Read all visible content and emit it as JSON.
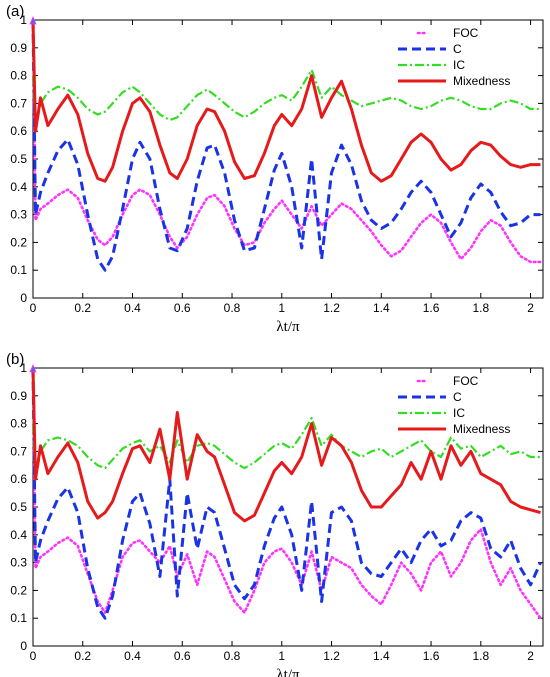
{
  "chart_data": [
    {
      "type": "line",
      "panel_label": "(a)",
      "xlabel": "λt/π",
      "ylabel": "",
      "xlim": [
        0,
        2.05
      ],
      "ylim": [
        0,
        1
      ],
      "xticks": [
        "0",
        "0.2",
        "0.4",
        "0.6",
        "0.8",
        "1",
        "1.2",
        "1.4",
        "1.6",
        "1.8",
        "2"
      ],
      "yticks": [
        "0",
        "0.1",
        "0.2",
        "0.3",
        "0.4",
        "0.5",
        "0.6",
        "0.7",
        "0.8",
        "0.9",
        "1"
      ],
      "grid": false,
      "legend": "top-right",
      "series": [
        {
          "name": "FOC",
          "style": "dotted",
          "color": "#ff33ff",
          "x": [
            0,
            0.01,
            0.03,
            0.06,
            0.1,
            0.14,
            0.18,
            0.22,
            0.26,
            0.29,
            0.32,
            0.36,
            0.4,
            0.43,
            0.47,
            0.51,
            0.55,
            0.58,
            0.62,
            0.66,
            0.7,
            0.73,
            0.77,
            0.81,
            0.85,
            0.89,
            0.93,
            0.97,
            1.0,
            1.04,
            1.08,
            1.12,
            1.16,
            1.2,
            1.24,
            1.28,
            1.32,
            1.36,
            1.4,
            1.44,
            1.48,
            1.52,
            1.56,
            1.6,
            1.64,
            1.68,
            1.72,
            1.76,
            1.8,
            1.84,
            1.88,
            1.92,
            1.96,
            2.0,
            2.04
          ],
          "y": [
            1.0,
            0.28,
            0.32,
            0.34,
            0.37,
            0.39,
            0.36,
            0.28,
            0.21,
            0.19,
            0.22,
            0.3,
            0.37,
            0.39,
            0.37,
            0.3,
            0.22,
            0.18,
            0.22,
            0.3,
            0.36,
            0.37,
            0.33,
            0.25,
            0.19,
            0.2,
            0.27,
            0.32,
            0.35,
            0.3,
            0.25,
            0.33,
            0.26,
            0.3,
            0.34,
            0.32,
            0.28,
            0.24,
            0.19,
            0.15,
            0.17,
            0.22,
            0.27,
            0.3,
            0.27,
            0.2,
            0.14,
            0.18,
            0.24,
            0.28,
            0.26,
            0.2,
            0.15,
            0.13,
            0.13
          ]
        },
        {
          "name": "C",
          "style": "dashed",
          "color": "#1a33e6",
          "x": [
            0,
            0.01,
            0.03,
            0.06,
            0.1,
            0.14,
            0.18,
            0.22,
            0.26,
            0.29,
            0.32,
            0.36,
            0.4,
            0.43,
            0.47,
            0.51,
            0.55,
            0.58,
            0.62,
            0.66,
            0.7,
            0.73,
            0.77,
            0.81,
            0.85,
            0.89,
            0.93,
            0.97,
            1.0,
            1.04,
            1.08,
            1.12,
            1.16,
            1.2,
            1.24,
            1.28,
            1.32,
            1.36,
            1.4,
            1.44,
            1.48,
            1.52,
            1.56,
            1.6,
            1.64,
            1.68,
            1.72,
            1.76,
            1.8,
            1.84,
            1.88,
            1.92,
            1.96,
            2.0,
            2.04
          ],
          "y": [
            1.0,
            0.3,
            0.38,
            0.45,
            0.53,
            0.57,
            0.48,
            0.3,
            0.14,
            0.1,
            0.15,
            0.32,
            0.5,
            0.56,
            0.5,
            0.32,
            0.18,
            0.17,
            0.25,
            0.42,
            0.54,
            0.55,
            0.45,
            0.28,
            0.17,
            0.18,
            0.32,
            0.46,
            0.52,
            0.4,
            0.18,
            0.5,
            0.14,
            0.45,
            0.55,
            0.48,
            0.35,
            0.28,
            0.25,
            0.27,
            0.32,
            0.38,
            0.42,
            0.38,
            0.3,
            0.22,
            0.27,
            0.36,
            0.41,
            0.38,
            0.31,
            0.26,
            0.27,
            0.3,
            0.3
          ]
        },
        {
          "name": "IC",
          "style": "dashdot",
          "color": "#33dd22",
          "x": [
            0,
            0.01,
            0.03,
            0.06,
            0.1,
            0.14,
            0.18,
            0.22,
            0.26,
            0.29,
            0.32,
            0.36,
            0.4,
            0.43,
            0.47,
            0.51,
            0.55,
            0.58,
            0.62,
            0.66,
            0.7,
            0.73,
            0.77,
            0.81,
            0.85,
            0.89,
            0.93,
            0.97,
            1.0,
            1.04,
            1.08,
            1.12,
            1.16,
            1.2,
            1.24,
            1.28,
            1.32,
            1.36,
            1.4,
            1.44,
            1.48,
            1.52,
            1.56,
            1.6,
            1.64,
            1.68,
            1.72,
            1.76,
            1.8,
            1.84,
            1.88,
            1.92,
            1.96,
            2.0,
            2.04
          ],
          "y": [
            0.8,
            0.6,
            0.7,
            0.74,
            0.76,
            0.75,
            0.72,
            0.68,
            0.66,
            0.67,
            0.7,
            0.74,
            0.76,
            0.74,
            0.7,
            0.66,
            0.64,
            0.65,
            0.69,
            0.73,
            0.75,
            0.73,
            0.7,
            0.67,
            0.65,
            0.67,
            0.7,
            0.72,
            0.73,
            0.71,
            0.76,
            0.82,
            0.72,
            0.76,
            0.73,
            0.71,
            0.69,
            0.7,
            0.71,
            0.72,
            0.71,
            0.69,
            0.68,
            0.69,
            0.71,
            0.72,
            0.71,
            0.69,
            0.68,
            0.68,
            0.7,
            0.71,
            0.7,
            0.68,
            0.68
          ]
        },
        {
          "name": "Mixedness",
          "style": "solid",
          "color": "#e61a1a",
          "x": [
            0,
            0.01,
            0.03,
            0.06,
            0.1,
            0.14,
            0.18,
            0.22,
            0.26,
            0.29,
            0.32,
            0.36,
            0.4,
            0.43,
            0.47,
            0.51,
            0.55,
            0.58,
            0.62,
            0.66,
            0.7,
            0.73,
            0.77,
            0.81,
            0.85,
            0.89,
            0.93,
            0.97,
            1.0,
            1.04,
            1.08,
            1.12,
            1.16,
            1.2,
            1.24,
            1.28,
            1.32,
            1.36,
            1.4,
            1.44,
            1.48,
            1.52,
            1.56,
            1.6,
            1.64,
            1.68,
            1.72,
            1.76,
            1.8,
            1.84,
            1.88,
            1.92,
            1.96,
            2.0,
            2.04
          ],
          "y": [
            1.0,
            0.6,
            0.72,
            0.62,
            0.68,
            0.73,
            0.66,
            0.52,
            0.43,
            0.42,
            0.47,
            0.6,
            0.7,
            0.72,
            0.67,
            0.55,
            0.45,
            0.43,
            0.5,
            0.62,
            0.68,
            0.67,
            0.6,
            0.49,
            0.43,
            0.44,
            0.52,
            0.62,
            0.66,
            0.62,
            0.68,
            0.8,
            0.65,
            0.72,
            0.78,
            0.68,
            0.55,
            0.45,
            0.42,
            0.44,
            0.5,
            0.56,
            0.59,
            0.56,
            0.5,
            0.46,
            0.48,
            0.53,
            0.56,
            0.55,
            0.51,
            0.48,
            0.47,
            0.48,
            0.48
          ]
        }
      ]
    },
    {
      "type": "line",
      "panel_label": "(b)",
      "xlabel": "λt/π",
      "ylabel": "",
      "xlim": [
        0,
        2.05
      ],
      "ylim": [
        0,
        1
      ],
      "xticks": [
        "0",
        "0.2",
        "0.4",
        "0.6",
        "0.8",
        "1",
        "1.2",
        "1.4",
        "1.6",
        "1.8",
        "2"
      ],
      "yticks": [
        "0",
        "0.1",
        "0.2",
        "0.3",
        "0.4",
        "0.5",
        "0.6",
        "0.7",
        "0.8",
        "0.9",
        "1"
      ],
      "grid": false,
      "legend": "top-right",
      "series": [
        {
          "name": "FOC",
          "style": "dotted",
          "color": "#ff33ff",
          "x": [
            0,
            0.01,
            0.03,
            0.06,
            0.1,
            0.14,
            0.18,
            0.22,
            0.26,
            0.29,
            0.32,
            0.36,
            0.4,
            0.43,
            0.47,
            0.51,
            0.55,
            0.58,
            0.62,
            0.66,
            0.7,
            0.73,
            0.77,
            0.81,
            0.85,
            0.89,
            0.93,
            0.97,
            1.0,
            1.04,
            1.08,
            1.12,
            1.16,
            1.2,
            1.24,
            1.28,
            1.32,
            1.36,
            1.4,
            1.44,
            1.48,
            1.52,
            1.56,
            1.6,
            1.64,
            1.68,
            1.72,
            1.76,
            1.8,
            1.84,
            1.88,
            1.92,
            1.96,
            2.0,
            2.04
          ],
          "y": [
            1.0,
            0.28,
            0.32,
            0.34,
            0.37,
            0.39,
            0.36,
            0.26,
            0.16,
            0.12,
            0.2,
            0.32,
            0.37,
            0.38,
            0.34,
            0.3,
            0.36,
            0.25,
            0.33,
            0.22,
            0.34,
            0.32,
            0.24,
            0.16,
            0.12,
            0.2,
            0.3,
            0.34,
            0.35,
            0.3,
            0.22,
            0.34,
            0.2,
            0.32,
            0.3,
            0.28,
            0.22,
            0.18,
            0.15,
            0.22,
            0.3,
            0.26,
            0.2,
            0.3,
            0.34,
            0.25,
            0.3,
            0.38,
            0.42,
            0.3,
            0.22,
            0.28,
            0.2,
            0.15,
            0.1
          ]
        },
        {
          "name": "C",
          "style": "dashed",
          "color": "#1a33e6",
          "x": [
            0,
            0.01,
            0.03,
            0.06,
            0.1,
            0.14,
            0.18,
            0.22,
            0.26,
            0.29,
            0.32,
            0.36,
            0.4,
            0.43,
            0.47,
            0.51,
            0.55,
            0.58,
            0.62,
            0.66,
            0.7,
            0.73,
            0.77,
            0.81,
            0.85,
            0.89,
            0.93,
            0.97,
            1.0,
            1.04,
            1.08,
            1.12,
            1.16,
            1.2,
            1.24,
            1.28,
            1.32,
            1.36,
            1.4,
            1.44,
            1.48,
            1.52,
            1.56,
            1.6,
            1.64,
            1.68,
            1.72,
            1.76,
            1.8,
            1.84,
            1.88,
            1.92,
            1.96,
            2.0,
            2.04
          ],
          "y": [
            1.0,
            0.3,
            0.38,
            0.45,
            0.53,
            0.57,
            0.48,
            0.28,
            0.14,
            0.1,
            0.18,
            0.38,
            0.52,
            0.55,
            0.44,
            0.25,
            0.6,
            0.18,
            0.55,
            0.35,
            0.5,
            0.48,
            0.35,
            0.22,
            0.17,
            0.22,
            0.36,
            0.46,
            0.5,
            0.4,
            0.2,
            0.52,
            0.16,
            0.48,
            0.5,
            0.45,
            0.3,
            0.26,
            0.25,
            0.3,
            0.35,
            0.3,
            0.38,
            0.42,
            0.36,
            0.38,
            0.45,
            0.48,
            0.46,
            0.35,
            0.32,
            0.38,
            0.28,
            0.22,
            0.3
          ]
        },
        {
          "name": "IC",
          "style": "dashdot",
          "color": "#33dd22",
          "x": [
            0,
            0.01,
            0.03,
            0.06,
            0.1,
            0.14,
            0.18,
            0.22,
            0.26,
            0.29,
            0.32,
            0.36,
            0.4,
            0.43,
            0.47,
            0.51,
            0.55,
            0.58,
            0.62,
            0.66,
            0.7,
            0.73,
            0.77,
            0.81,
            0.85,
            0.89,
            0.93,
            0.97,
            1.0,
            1.04,
            1.08,
            1.12,
            1.16,
            1.2,
            1.24,
            1.28,
            1.32,
            1.36,
            1.4,
            1.44,
            1.48,
            1.52,
            1.56,
            1.6,
            1.64,
            1.68,
            1.72,
            1.76,
            1.8,
            1.84,
            1.88,
            1.92,
            1.96,
            2.0,
            2.04
          ],
          "y": [
            0.8,
            0.6,
            0.7,
            0.74,
            0.75,
            0.74,
            0.72,
            0.68,
            0.65,
            0.64,
            0.67,
            0.71,
            0.73,
            0.74,
            0.7,
            0.72,
            0.66,
            0.74,
            0.66,
            0.72,
            0.73,
            0.72,
            0.69,
            0.66,
            0.64,
            0.66,
            0.69,
            0.72,
            0.73,
            0.71,
            0.76,
            0.82,
            0.72,
            0.76,
            0.72,
            0.7,
            0.68,
            0.7,
            0.71,
            0.68,
            0.7,
            0.72,
            0.74,
            0.7,
            0.68,
            0.75,
            0.71,
            0.72,
            0.68,
            0.7,
            0.72,
            0.69,
            0.7,
            0.68,
            0.68
          ]
        },
        {
          "name": "Mixedness",
          "style": "solid",
          "color": "#e61a1a",
          "x": [
            0,
            0.01,
            0.03,
            0.06,
            0.1,
            0.14,
            0.18,
            0.22,
            0.26,
            0.29,
            0.32,
            0.36,
            0.4,
            0.43,
            0.47,
            0.51,
            0.55,
            0.58,
            0.62,
            0.66,
            0.7,
            0.73,
            0.77,
            0.81,
            0.85,
            0.89,
            0.93,
            0.97,
            1.0,
            1.04,
            1.08,
            1.12,
            1.16,
            1.2,
            1.24,
            1.28,
            1.32,
            1.36,
            1.4,
            1.44,
            1.48,
            1.52,
            1.56,
            1.6,
            1.64,
            1.68,
            1.72,
            1.76,
            1.8,
            1.84,
            1.88,
            1.92,
            1.96,
            2.0,
            2.04
          ],
          "y": [
            1.0,
            0.6,
            0.72,
            0.62,
            0.68,
            0.73,
            0.66,
            0.52,
            0.46,
            0.48,
            0.52,
            0.62,
            0.71,
            0.72,
            0.66,
            0.78,
            0.6,
            0.84,
            0.6,
            0.76,
            0.7,
            0.68,
            0.58,
            0.48,
            0.45,
            0.47,
            0.55,
            0.63,
            0.66,
            0.62,
            0.68,
            0.8,
            0.65,
            0.75,
            0.72,
            0.66,
            0.56,
            0.5,
            0.5,
            0.54,
            0.58,
            0.66,
            0.6,
            0.7,
            0.6,
            0.72,
            0.65,
            0.7,
            0.62,
            0.6,
            0.58,
            0.52,
            0.5,
            0.49,
            0.48
          ]
        }
      ]
    }
  ]
}
